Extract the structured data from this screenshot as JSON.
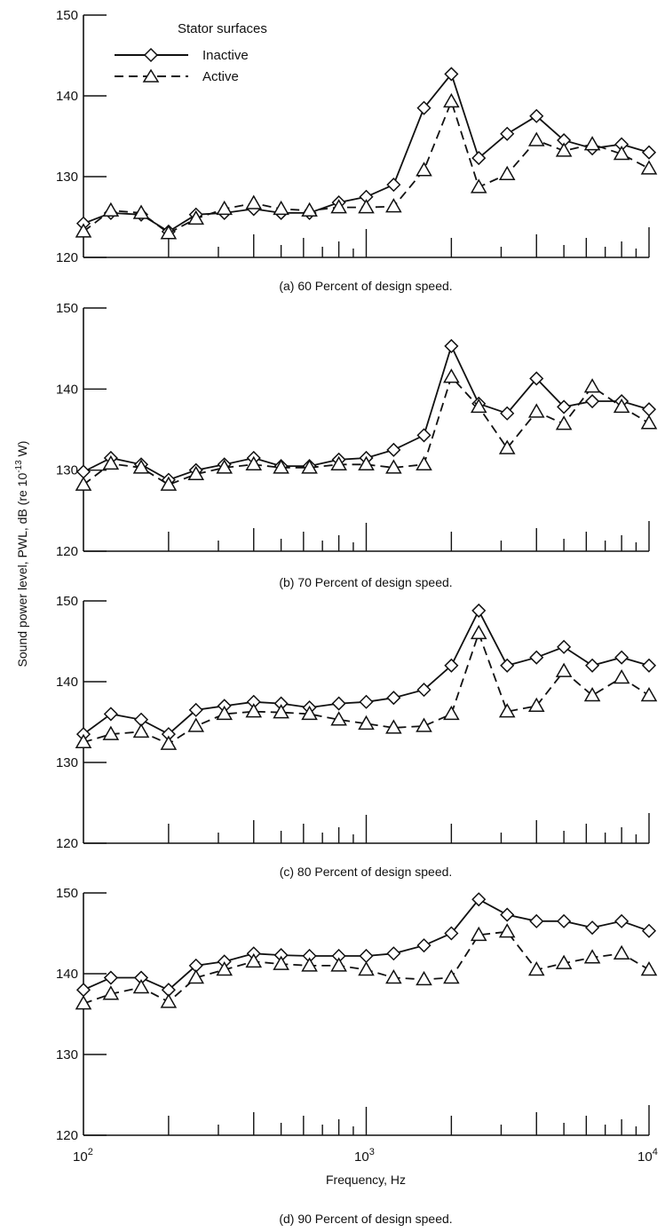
{
  "figure": {
    "y_axis_label": "Sound power level,  PWL,  dB (re 10",
    "y_axis_label_sup": "-13",
    "y_axis_label_end": " W)",
    "x_axis_label": "Frequency,  Hz",
    "x_tick_base": "10",
    "x_tick_exponents": [
      "2",
      "3",
      "4"
    ],
    "legend": {
      "title": "Stator surfaces",
      "entries": [
        "Inactive",
        "Active"
      ]
    }
  },
  "chart_data": [
    {
      "type": "line",
      "caption": "(a) 60 Percent of design speed.",
      "x": [
        100,
        125,
        160,
        200,
        250,
        315,
        400,
        500,
        630,
        800,
        1000,
        1250,
        1600,
        2000,
        2500,
        3150,
        4000,
        5000,
        6300,
        8000,
        10000
      ],
      "xscale": "log",
      "xlim": [
        100,
        10000
      ],
      "ylim": [
        120,
        150
      ],
      "yticks": [
        120,
        130,
        140,
        150
      ],
      "series": [
        {
          "name": "Inactive",
          "marker": "diamond",
          "line": "solid",
          "values": [
            124.2,
            125.5,
            125.3,
            123.2,
            125.3,
            125.5,
            126.0,
            125.5,
            125.5,
            126.8,
            127.5,
            129.0,
            138.5,
            142.7,
            132.3,
            135.3,
            137.5,
            134.5,
            133.5,
            134.0,
            133.0
          ]
        },
        {
          "name": "Active",
          "marker": "triangle",
          "line": "dashed",
          "values": [
            123.2,
            125.8,
            125.5,
            123.0,
            124.8,
            126.0,
            126.7,
            126.0,
            125.8,
            126.2,
            126.2,
            126.3,
            130.8,
            139.3,
            128.7,
            130.3,
            134.5,
            133.2,
            134.0,
            132.8,
            131.0
          ]
        }
      ]
    },
    {
      "type": "line",
      "caption": "(b) 70 Percent of design speed.",
      "x": [
        100,
        125,
        160,
        200,
        250,
        315,
        400,
        500,
        630,
        800,
        1000,
        1250,
        1600,
        2000,
        2500,
        3150,
        4000,
        5000,
        6300,
        8000,
        10000
      ],
      "xscale": "log",
      "xlim": [
        100,
        10000
      ],
      "ylim": [
        120,
        150
      ],
      "yticks": [
        120,
        130,
        140,
        150
      ],
      "series": [
        {
          "name": "Inactive",
          "marker": "diamond",
          "line": "solid",
          "values": [
            129.8,
            131.5,
            130.7,
            128.8,
            130.0,
            130.7,
            131.5,
            130.5,
            130.5,
            131.3,
            131.5,
            132.5,
            134.3,
            145.3,
            138.2,
            137.0,
            141.3,
            137.8,
            138.5,
            138.5,
            137.5
          ]
        },
        {
          "name": "Active",
          "marker": "triangle",
          "line": "dashed",
          "values": [
            128.2,
            130.8,
            130.3,
            128.2,
            129.5,
            130.3,
            130.7,
            130.3,
            130.3,
            130.7,
            130.7,
            130.3,
            130.7,
            141.5,
            137.8,
            132.7,
            137.2,
            135.7,
            140.3,
            137.8,
            135.8
          ]
        }
      ]
    },
    {
      "type": "line",
      "caption": "(c) 80 Percent of design speed.",
      "x": [
        100,
        125,
        160,
        200,
        250,
        315,
        400,
        500,
        630,
        800,
        1000,
        1250,
        1600,
        2000,
        2500,
        3150,
        4000,
        5000,
        6300,
        8000,
        10000
      ],
      "xscale": "log",
      "xlim": [
        100,
        10000
      ],
      "ylim": [
        120,
        150
      ],
      "yticks": [
        120,
        130,
        140,
        150
      ],
      "series": [
        {
          "name": "Inactive",
          "marker": "diamond",
          "line": "solid",
          "values": [
            133.5,
            136.0,
            135.3,
            133.5,
            136.5,
            137.0,
            137.5,
            137.3,
            136.8,
            137.3,
            137.5,
            138.0,
            139.0,
            142.0,
            148.8,
            142.0,
            143.0,
            144.3,
            142.0,
            143.0,
            142.0
          ]
        },
        {
          "name": "Active",
          "marker": "triangle",
          "line": "dashed",
          "values": [
            132.5,
            133.5,
            133.8,
            132.3,
            134.5,
            136.0,
            136.3,
            136.2,
            136.0,
            135.3,
            134.8,
            134.3,
            134.5,
            136.0,
            146.0,
            136.3,
            137.0,
            141.3,
            138.3,
            140.5,
            138.3
          ]
        }
      ]
    },
    {
      "type": "line",
      "caption": "(d) 90 Percent of design speed.",
      "x": [
        100,
        125,
        160,
        200,
        250,
        315,
        400,
        500,
        630,
        800,
        1000,
        1250,
        1600,
        2000,
        2500,
        3150,
        4000,
        5000,
        6300,
        8000,
        10000
      ],
      "xscale": "log",
      "xlim": [
        100,
        10000
      ],
      "ylim": [
        120,
        150
      ],
      "yticks": [
        120,
        130,
        140,
        150
      ],
      "series": [
        {
          "name": "Inactive",
          "marker": "diamond",
          "line": "solid",
          "values": [
            138.0,
            139.5,
            139.5,
            138.0,
            141.0,
            141.5,
            142.5,
            142.3,
            142.2,
            142.2,
            142.2,
            142.5,
            143.5,
            145.0,
            149.2,
            147.3,
            146.5,
            146.5,
            145.7,
            146.5,
            145.3
          ]
        },
        {
          "name": "Active",
          "marker": "triangle",
          "line": "dashed",
          "values": [
            136.3,
            137.5,
            138.3,
            136.5,
            139.5,
            140.5,
            141.5,
            141.2,
            141.0,
            141.0,
            140.5,
            139.5,
            139.3,
            139.5,
            144.8,
            145.2,
            140.5,
            141.3,
            142.0,
            142.5,
            140.5
          ]
        }
      ]
    }
  ]
}
